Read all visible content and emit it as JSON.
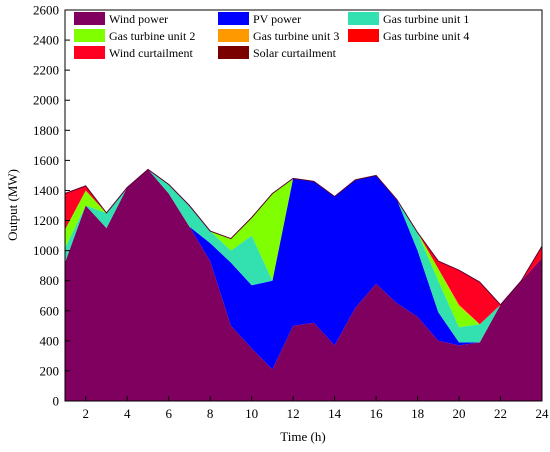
{
  "chart_data": {
    "type": "area",
    "stacked": true,
    "xlabel": "Time (h)",
    "ylabel": "Output (MW)",
    "xlim": [
      1,
      24
    ],
    "ylim": [
      0,
      2600
    ],
    "x_ticks": [
      2,
      4,
      6,
      8,
      10,
      12,
      14,
      16,
      18,
      20,
      22,
      24
    ],
    "y_ticks": [
      0,
      200,
      400,
      600,
      800,
      1000,
      1200,
      1400,
      1600,
      1800,
      2000,
      2200,
      2400,
      2600
    ],
    "grid": false,
    "legend_placement": "top",
    "x": [
      1,
      2,
      3,
      4,
      5,
      6,
      7,
      8,
      9,
      10,
      11,
      12,
      13,
      14,
      15,
      16,
      17,
      18,
      19,
      20,
      21,
      22,
      23,
      24
    ],
    "series": [
      {
        "name": "Wind power",
        "color": "#800060",
        "values": [
          920,
          1300,
          1150,
          1420,
          1540,
          1380,
          1160,
          930,
          500,
          350,
          210,
          500,
          520,
          370,
          620,
          780,
          650,
          560,
          400,
          370,
          390,
          640,
          800,
          950
        ]
      },
      {
        "name": "PV power",
        "color": "#0000ff",
        "values": [
          0,
          0,
          0,
          0,
          0,
          0,
          0,
          120,
          420,
          420,
          590,
          980,
          940,
          990,
          850,
          720,
          690,
          440,
          190,
          20,
          0,
          0,
          0,
          0
        ]
      },
      {
        "name": "Gas turbine unit 1",
        "color": "#33e0b0",
        "values": [
          100,
          0,
          100,
          0,
          0,
          60,
          140,
          80,
          80,
          330,
          0,
          0,
          0,
          0,
          0,
          0,
          0,
          120,
          210,
          100,
          120,
          0,
          0,
          0
        ]
      },
      {
        "name": "Gas turbine unit 2",
        "color": "#80ff00",
        "values": [
          120,
          100,
          0,
          0,
          0,
          0,
          0,
          0,
          80,
          120,
          580,
          0,
          0,
          0,
          0,
          0,
          0,
          0,
          80,
          140,
          0,
          0,
          0,
          0
        ]
      },
      {
        "name": "Gas turbine unit 3",
        "color": "#ff9900",
        "values": [
          0,
          0,
          0,
          0,
          0,
          0,
          0,
          0,
          0,
          0,
          0,
          0,
          0,
          0,
          0,
          0,
          0,
          0,
          0,
          10,
          0,
          0,
          0,
          0
        ]
      },
      {
        "name": "Gas turbine unit 4",
        "color": "#ff0000",
        "values": [
          0,
          0,
          0,
          0,
          0,
          0,
          0,
          0,
          0,
          0,
          0,
          0,
          0,
          0,
          0,
          0,
          0,
          0,
          0,
          0,
          0,
          0,
          0,
          0
        ]
      },
      {
        "name": "Wind curtailment",
        "color": "#ff0022",
        "values": [
          240,
          30,
          0,
          0,
          0,
          0,
          0,
          0,
          0,
          0,
          0,
          0,
          0,
          0,
          0,
          0,
          0,
          0,
          50,
          230,
          280,
          0,
          0,
          80
        ]
      },
      {
        "name": "Solar curtailment",
        "color": "#7a0000",
        "values": [
          0,
          0,
          0,
          0,
          0,
          0,
          0,
          0,
          0,
          0,
          0,
          0,
          0,
          0,
          0,
          0,
          0,
          0,
          0,
          0,
          0,
          0,
          0,
          0
        ]
      }
    ],
    "legend_entries": [
      "Wind power",
      "PV power",
      "Gas turbine unit 1",
      "Gas turbine unit 2",
      "Gas turbine unit 3",
      "Gas turbine unit 4",
      "Wind curtailment",
      "Solar curtailment"
    ]
  }
}
